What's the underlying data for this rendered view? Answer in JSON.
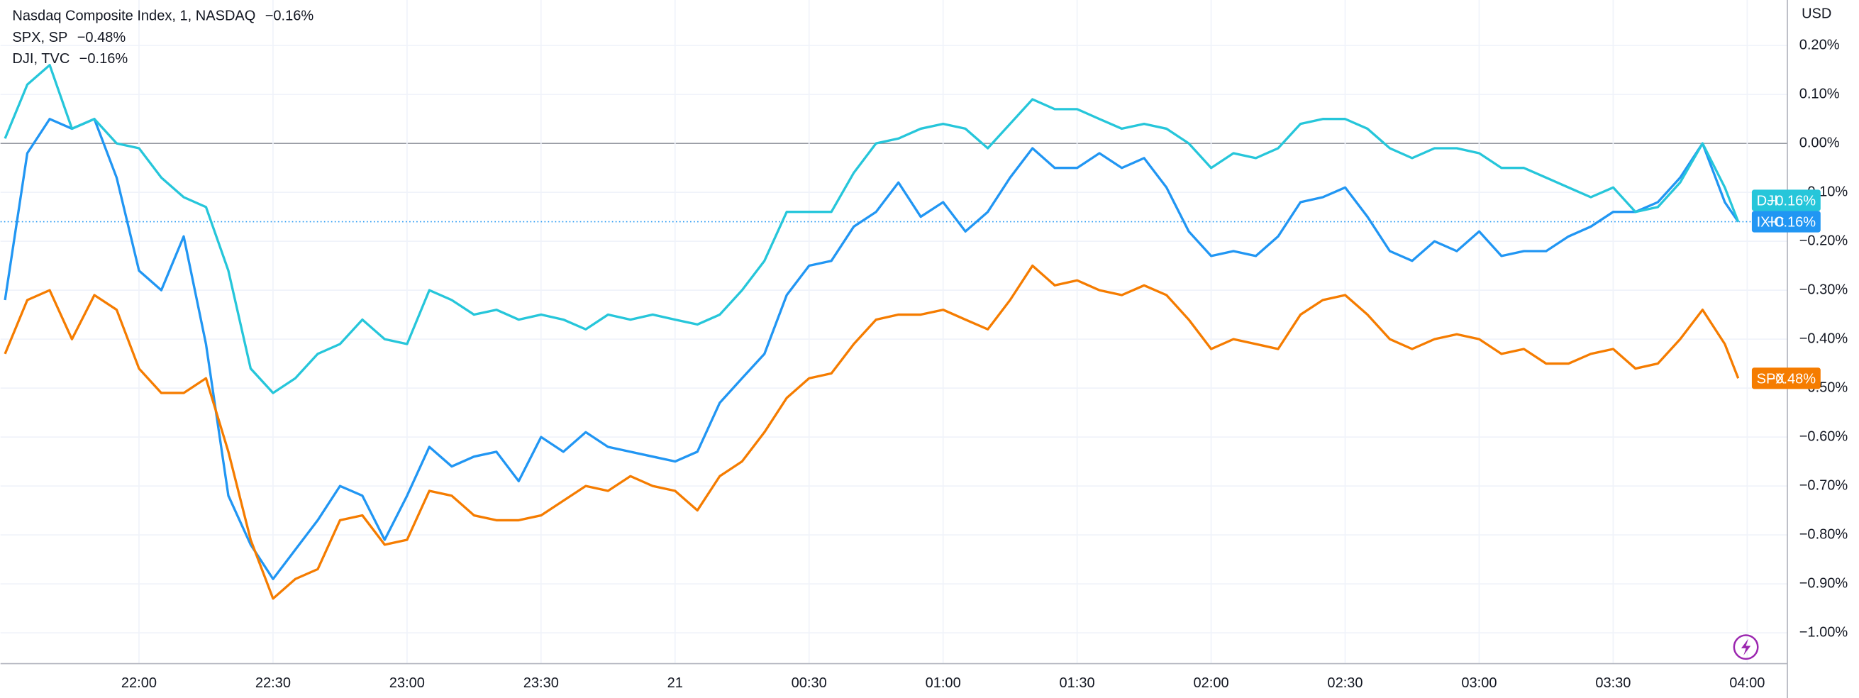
{
  "chart_data": {
    "type": "line",
    "currency": "USD",
    "x": [
      "21:30",
      "21:35",
      "21:40",
      "21:45",
      "21:50",
      "21:55",
      "22:00",
      "22:05",
      "22:10",
      "22:15",
      "22:20",
      "22:25",
      "22:30",
      "22:35",
      "22:40",
      "22:45",
      "22:50",
      "22:55",
      "23:00",
      "23:05",
      "23:10",
      "23:15",
      "23:20",
      "23:25",
      "23:30",
      "23:35",
      "23:40",
      "23:45",
      "23:50",
      "23:55",
      "00:00",
      "00:05",
      "00:10",
      "00:15",
      "00:20",
      "00:25",
      "00:30",
      "00:35",
      "00:40",
      "00:45",
      "00:50",
      "00:55",
      "01:00",
      "01:05",
      "01:10",
      "01:15",
      "01:20",
      "01:25",
      "01:30",
      "01:35",
      "01:40",
      "01:45",
      "01:50",
      "01:55",
      "02:00",
      "02:05",
      "02:10",
      "02:15",
      "02:20",
      "02:25",
      "02:30",
      "02:35",
      "02:40",
      "02:45",
      "02:50",
      "02:55",
      "03:00",
      "03:05",
      "03:10",
      "03:15",
      "03:20",
      "03:25",
      "03:30",
      "03:35",
      "03:40",
      "03:45",
      "03:50",
      "03:55",
      "03:58"
    ],
    "xlim": [
      "21:29",
      "04:09"
    ],
    "xticks": [
      "22:00",
      "22:30",
      "23:00",
      "23:30",
      {
        "value": "00:00",
        "label": "21"
      },
      "00:30",
      "01:00",
      "01:30",
      "02:00",
      "02:30",
      "03:00",
      "03:30",
      "04:00"
    ],
    "ylim": [
      -1.063,
      0.293
    ],
    "yticks": [
      {
        "value": 0.2,
        "label": "0.20%"
      },
      {
        "value": 0.1,
        "label": "0.10%"
      },
      {
        "value": 0,
        "label": "0.00%"
      },
      {
        "value": -0.1,
        "label": "−0.10%"
      },
      {
        "value": -0.2,
        "label": "−0.20%"
      },
      {
        "value": -0.3,
        "label": "−0.30%"
      },
      {
        "value": -0.4,
        "label": "−0.40%"
      },
      {
        "value": -0.5,
        "label": "−0.50%"
      },
      {
        "value": -0.6,
        "label": "−0.60%"
      },
      {
        "value": -0.7,
        "label": "−0.70%"
      },
      {
        "value": -0.8,
        "label": "−0.80%"
      },
      {
        "value": -0.9,
        "label": "−0.90%"
      },
      {
        "value": -1,
        "label": "−1.00%"
      }
    ],
    "grid": true,
    "series": [
      {
        "name": "IXIC",
        "legend": "Nasdaq Composite Index, 1, NASDAQ",
        "color": "#2196f3",
        "change": -0.16,
        "change_label": "−0.16%",
        "values": [
          -0.32,
          -0.02,
          0.05,
          0.03,
          0.05,
          -0.07,
          -0.26,
          -0.3,
          -0.19,
          -0.41,
          -0.72,
          -0.82,
          -0.89,
          -0.83,
          -0.77,
          -0.7,
          -0.72,
          -0.81,
          -0.72,
          -0.62,
          -0.66,
          -0.64,
          -0.63,
          -0.69,
          -0.6,
          -0.63,
          -0.59,
          -0.62,
          -0.63,
          -0.64,
          -0.65,
          -0.63,
          -0.53,
          -0.48,
          -0.43,
          -0.31,
          -0.25,
          -0.24,
          -0.17,
          -0.14,
          -0.08,
          -0.15,
          -0.12,
          -0.18,
          -0.14,
          -0.07,
          -0.01,
          -0.05,
          -0.05,
          -0.02,
          -0.05,
          -0.03,
          -0.09,
          -0.18,
          -0.23,
          -0.22,
          -0.23,
          -0.19,
          -0.12,
          -0.11,
          -0.09,
          -0.15,
          -0.22,
          -0.24,
          -0.2,
          -0.22,
          -0.18,
          -0.23,
          -0.22,
          -0.22,
          -0.19,
          -0.17,
          -0.14,
          -0.14,
          -0.12,
          -0.07,
          0.0,
          -0.12,
          -0.16
        ]
      },
      {
        "name": "SPX",
        "legend": "SPX, SP",
        "color": "#f57c00",
        "change": -0.48,
        "change_label": "−0.48%",
        "values": [
          -0.43,
          -0.32,
          -0.3,
          -0.4,
          -0.31,
          -0.34,
          -0.46,
          -0.51,
          -0.51,
          -0.48,
          -0.63,
          -0.81,
          -0.93,
          -0.89,
          -0.87,
          -0.77,
          -0.76,
          -0.82,
          -0.81,
          -0.71,
          -0.72,
          -0.76,
          -0.77,
          -0.77,
          -0.76,
          -0.73,
          -0.7,
          -0.71,
          -0.68,
          -0.7,
          -0.71,
          -0.75,
          -0.68,
          -0.65,
          -0.59,
          -0.52,
          -0.48,
          -0.47,
          -0.41,
          -0.36,
          -0.35,
          -0.35,
          -0.34,
          -0.36,
          -0.38,
          -0.32,
          -0.25,
          -0.29,
          -0.28,
          -0.3,
          -0.31,
          -0.29,
          -0.31,
          -0.36,
          -0.42,
          -0.4,
          -0.41,
          -0.42,
          -0.35,
          -0.32,
          -0.31,
          -0.35,
          -0.4,
          -0.42,
          -0.4,
          -0.39,
          -0.4,
          -0.43,
          -0.42,
          -0.45,
          -0.45,
          -0.43,
          -0.42,
          -0.46,
          -0.45,
          -0.4,
          -0.34,
          -0.41,
          -0.48
        ]
      },
      {
        "name": "DJI",
        "legend": "DJI, TVC",
        "color": "#26c6da",
        "change": -0.16,
        "change_label": "−0.16%",
        "values": [
          0.01,
          0.12,
          0.16,
          0.03,
          0.05,
          0.0,
          -0.01,
          -0.07,
          -0.11,
          -0.13,
          -0.26,
          -0.46,
          -0.51,
          -0.48,
          -0.43,
          -0.41,
          -0.36,
          -0.4,
          -0.41,
          -0.3,
          -0.32,
          -0.35,
          -0.34,
          -0.36,
          -0.35,
          -0.36,
          -0.38,
          -0.35,
          -0.36,
          -0.35,
          -0.36,
          -0.37,
          -0.35,
          -0.3,
          -0.24,
          -0.14,
          -0.14,
          -0.14,
          -0.06,
          0.0,
          0.01,
          0.03,
          0.04,
          0.03,
          -0.01,
          0.04,
          0.09,
          0.07,
          0.07,
          0.05,
          0.03,
          0.04,
          0.03,
          0.0,
          -0.05,
          -0.02,
          -0.03,
          -0.01,
          0.04,
          0.05,
          0.05,
          0.03,
          -0.01,
          -0.03,
          -0.01,
          -0.01,
          -0.02,
          -0.05,
          -0.05,
          -0.07,
          -0.09,
          -0.11,
          -0.09,
          -0.14,
          -0.13,
          -0.08,
          0.0,
          -0.09,
          -0.16
        ]
      }
    ]
  }
}
